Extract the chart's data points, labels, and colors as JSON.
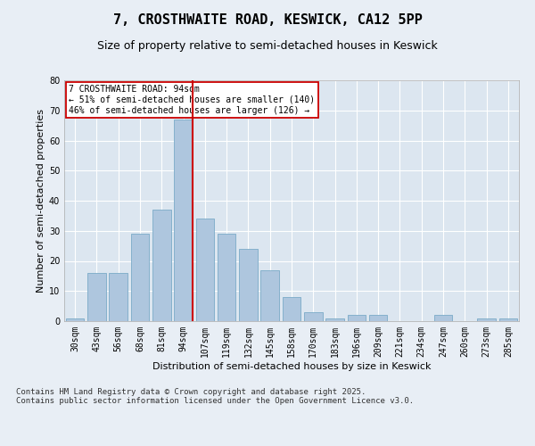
{
  "title": "7, CROSTHWAITE ROAD, KESWICK, CA12 5PP",
  "subtitle": "Size of property relative to semi-detached houses in Keswick",
  "xlabel": "Distribution of semi-detached houses by size in Keswick",
  "ylabel": "Number of semi-detached properties",
  "categories": [
    "30sqm",
    "43sqm",
    "56sqm",
    "68sqm",
    "81sqm",
    "94sqm",
    "107sqm",
    "119sqm",
    "132sqm",
    "145sqm",
    "158sqm",
    "170sqm",
    "183sqm",
    "196sqm",
    "209sqm",
    "221sqm",
    "234sqm",
    "247sqm",
    "260sqm",
    "273sqm",
    "285sqm"
  ],
  "values": [
    1,
    16,
    16,
    29,
    37,
    67,
    34,
    29,
    24,
    17,
    8,
    3,
    1,
    2,
    2,
    0,
    0,
    2,
    0,
    1,
    1
  ],
  "bar_color": "#aec6de",
  "bar_edge_color": "#7aaac8",
  "highlight_index": 5,
  "highlight_line_color": "#cc0000",
  "annotation_text": "7 CROSTHWAITE ROAD: 94sqm\n← 51% of semi-detached houses are smaller (140)\n46% of semi-detached houses are larger (126) →",
  "annotation_box_color": "#cc0000",
  "footer_text": "Contains HM Land Registry data © Crown copyright and database right 2025.\nContains public sector information licensed under the Open Government Licence v3.0.",
  "ylim": [
    0,
    80
  ],
  "yticks": [
    0,
    10,
    20,
    30,
    40,
    50,
    60,
    70,
    80
  ],
  "background_color": "#e8eef5",
  "plot_bg_color": "#dce6f0",
  "grid_color": "#ffffff",
  "title_fontsize": 11,
  "subtitle_fontsize": 9,
  "axis_label_fontsize": 8,
  "tick_fontsize": 7,
  "footer_fontsize": 6.5,
  "annotation_fontsize": 7
}
